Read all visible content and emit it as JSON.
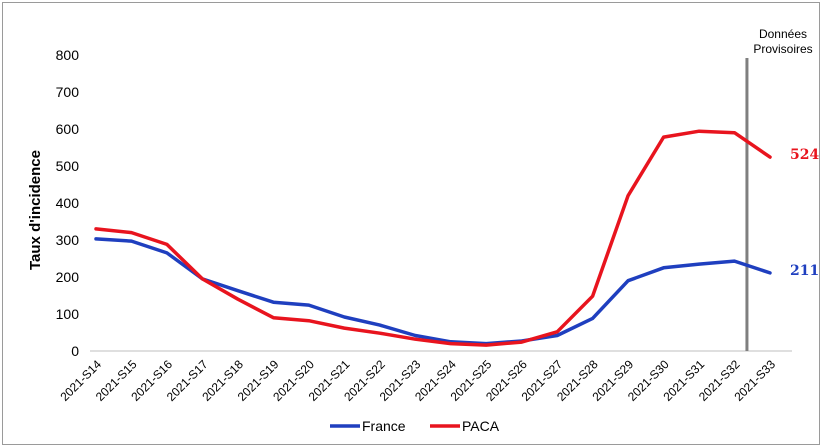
{
  "chart_data": {
    "type": "line",
    "title": "",
    "xlabel": "",
    "ylabel": "Taux d'incidence",
    "ylim": [
      0,
      800
    ],
    "yticks": [
      "0",
      "100",
      "200",
      "300",
      "400",
      "500",
      "600",
      "700",
      "800"
    ],
    "grid": false,
    "legend_position": "bottom",
    "categories": [
      "2021-S14",
      "2021-S15",
      "2021-S16",
      "2021-S17",
      "2021-S18",
      "2021-S19",
      "2021-S20",
      "2021-S21",
      "2021-S22",
      "2021-S23",
      "2021-S24",
      "2021-S25",
      "2021-S26",
      "2021-S27",
      "2021-S28",
      "2021-S29",
      "2021-S30",
      "2021-S31",
      "2021-S32",
      "2021-S33"
    ],
    "series": [
      {
        "name": "France",
        "color": "#1f3fbf",
        "values": [
          303,
          297,
          265,
          195,
          163,
          132,
          124,
          92,
          70,
          42,
          25,
          20,
          27,
          42,
          88,
          190,
          225,
          235,
          243,
          211
        ]
      },
      {
        "name": "PACA",
        "color": "#e8141e",
        "values": [
          330,
          320,
          288,
          195,
          140,
          90,
          82,
          62,
          48,
          32,
          20,
          16,
          24,
          52,
          148,
          420,
          578,
          594,
          590,
          524
        ]
      }
    ],
    "end_labels": [
      {
        "series": "PACA",
        "text": "524",
        "color": "#e8141e"
      },
      {
        "series": "France",
        "text": "211",
        "color": "#1f3fbf"
      }
    ],
    "annotation": {
      "line1": "Données",
      "line2": "Provisoires",
      "after_category": "2021-S32"
    }
  }
}
